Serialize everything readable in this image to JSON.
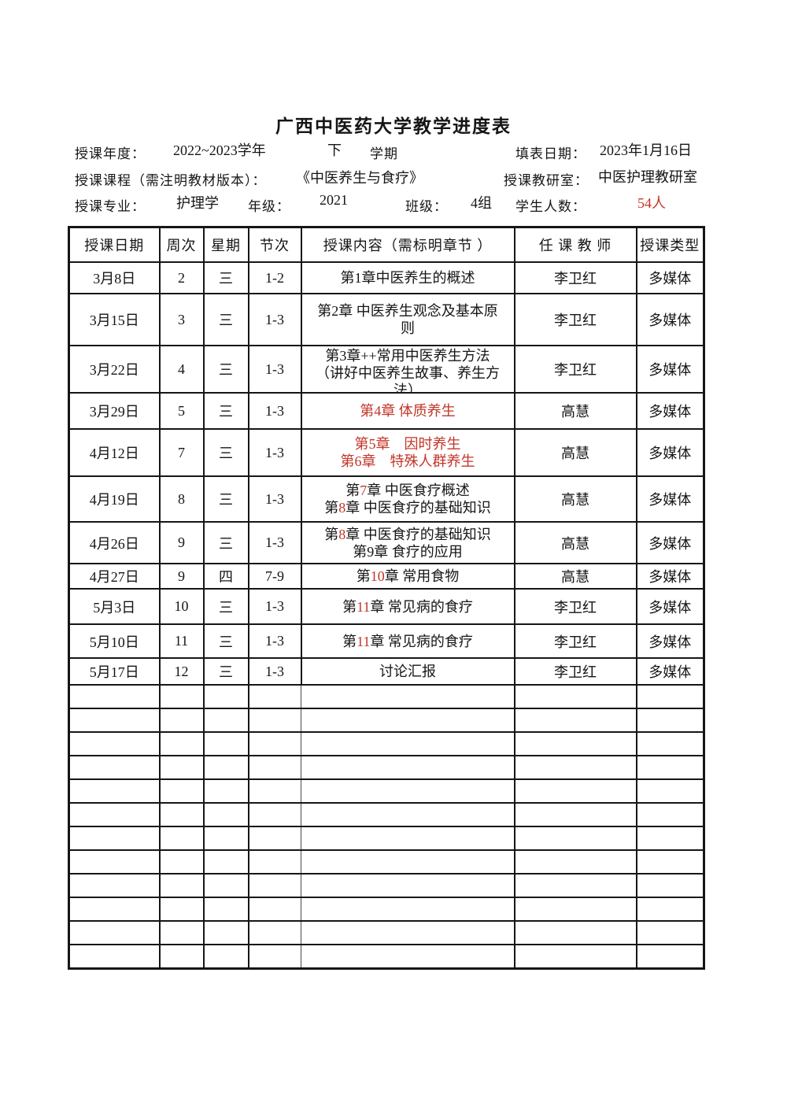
{
  "page": {
    "title": "广西中医药大学教学进度表"
  },
  "colors": {
    "red": "#c23528",
    "text": "#151515",
    "border": "#161616"
  },
  "info": {
    "year_label": "授课年度：",
    "year_value": "2022~2023学年",
    "semester_value": "下",
    "semester_label": "学期",
    "fill_date_label": "填表日期：",
    "fill_date_value": "2023年1月16日",
    "course_label": "授课课程（需注明教材版本）：",
    "course_value": "《中医养生与食疗》",
    "office_label": "授课教研室：",
    "office_value": "中医护理教研室",
    "major_label": "授课专业：",
    "major_value": "护理学",
    "grade_label": "年级：",
    "grade_value": "2021",
    "class_label": "班级：",
    "class_value": "4组",
    "students_label": "学生人数：",
    "students_value": "54人"
  },
  "table": {
    "columns": [
      "授课日期",
      "周次",
      "星期",
      "节次",
      "授课内容（需标明章节 ）",
      "任 课 教 师",
      "授课类型"
    ],
    "rows": [
      {
        "date": "3月8日",
        "week": "2",
        "weekday": "三",
        "periods": "1-2",
        "content": [
          "第1章中医养生的概述"
        ],
        "teacher": "李卫红",
        "type": "多媒体"
      },
      {
        "date": "3月15日",
        "week": "3",
        "weekday": "三",
        "periods": "1-3",
        "content": [
          "第2章 中医养生观念及基本原",
          "则"
        ],
        "teacher": "李卫红",
        "type": "多媒体"
      },
      {
        "date": "3月22日",
        "week": "4",
        "weekday": "三",
        "periods": "1-3",
        "content": [
          "第3章++常用中医养生方法",
          "（讲好中医养生故事、养生方",
          "法）"
        ],
        "teacher": "李卫红",
        "type": "多媒体"
      },
      {
        "date": "3月29日",
        "week": "5",
        "weekday": "三",
        "periods": "1-3",
        "content": [
          "{第4章  体质养生}"
        ],
        "teacher": "高慧",
        "type": "多媒体"
      },
      {
        "date": "4月12日",
        "week": "7",
        "weekday": "三",
        "periods": "1-3",
        "content": [
          "{第5章　因时养生}",
          "{第6章　特殊人群养生}"
        ],
        "teacher": "高慧",
        "type": "多媒体"
      },
      {
        "date": "4月19日",
        "week": "8",
        "weekday": "三",
        "periods": "1-3",
        "content": [
          "第{7}章 中医食疗概述",
          "第{8}章 中医食疗的基础知识"
        ],
        "teacher": "高慧",
        "type": "多媒体"
      },
      {
        "date": "4月26日",
        "week": "9",
        "weekday": "三",
        "periods": "1-3",
        "content": [
          "第{8}章 中医食疗的基础知识",
          "第9章 食疗的应用"
        ],
        "teacher": "高慧",
        "type": "多媒体"
      },
      {
        "date": "4月27日",
        "week": "9",
        "weekday": "四",
        "periods": "7-9",
        "content": [
          "第{10}章 常用食物"
        ],
        "teacher": "高慧",
        "type": "多媒体"
      },
      {
        "date": "5月3日",
        "week": "10",
        "weekday": "三",
        "periods": "1-3",
        "content": [
          "第{11}章 常见病的食疗"
        ],
        "teacher": "李卫红",
        "type": "多媒体"
      },
      {
        "date": "5月10日",
        "week": "11",
        "weekday": "三",
        "periods": "1-3",
        "content": [
          "第{11}章 常见病的食疗"
        ],
        "teacher": "李卫红",
        "type": "多媒体"
      },
      {
        "date": "5月17日",
        "week": "12",
        "weekday": "三",
        "periods": "1-3",
        "content": [
          "讨论汇报"
        ],
        "teacher": "李卫红",
        "type": "多媒体"
      }
    ],
    "empty_rows": 12
  }
}
